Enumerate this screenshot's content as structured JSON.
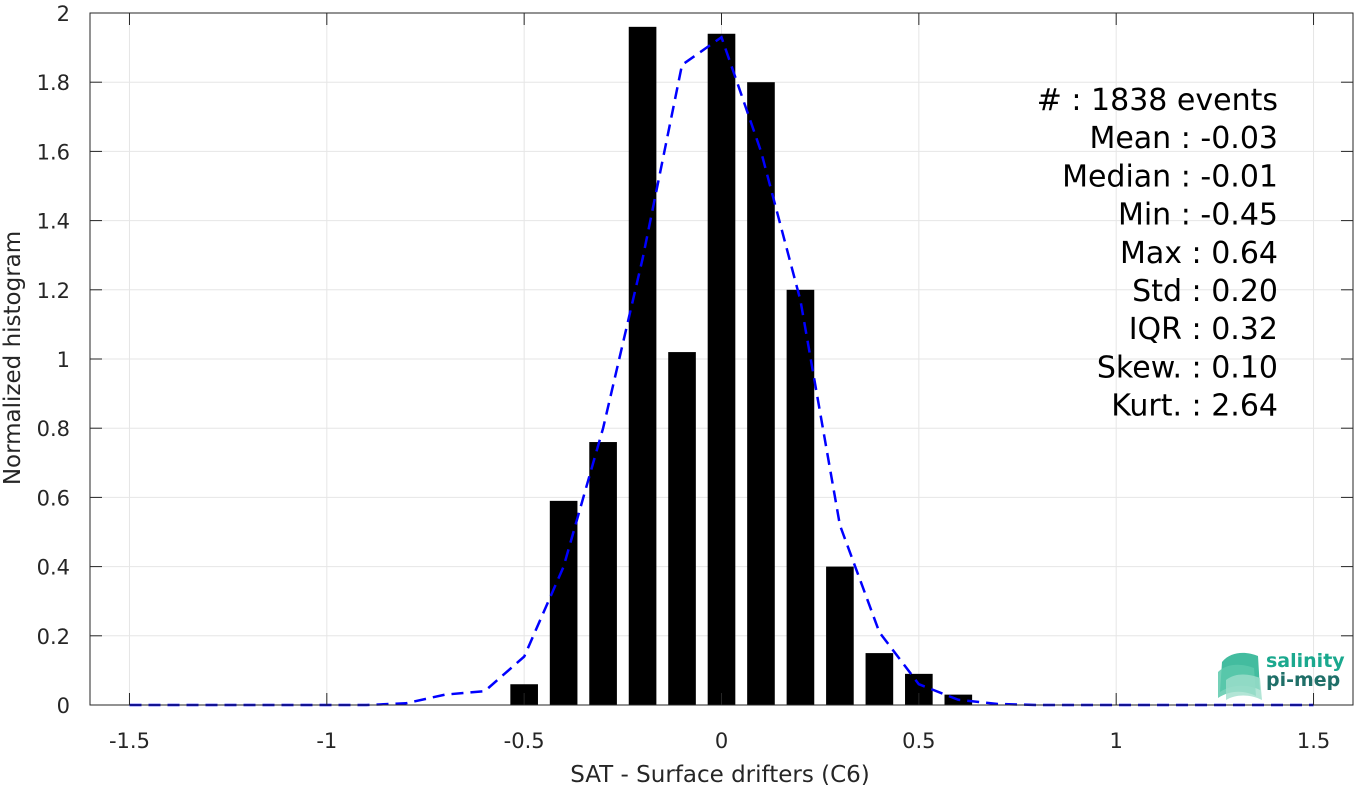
{
  "chart_data": {
    "type": "bar",
    "title": "",
    "xlabel": "SAT - Surface drifters (C6)",
    "ylabel": "Normalized histogram",
    "xlim": [
      -1.6,
      1.6
    ],
    "ylim": [
      0,
      2
    ],
    "grid": true,
    "x_ticks": [
      "-1.5",
      "-1",
      "-0.5",
      "0",
      "0.5",
      "1",
      "1.5"
    ],
    "x_tick_values": [
      -1.5,
      -1,
      -0.5,
      0,
      0.5,
      1,
      1.5
    ],
    "y_ticks": [
      "0",
      "0.2",
      "0.4",
      "0.6",
      "0.8",
      "1",
      "1.2",
      "1.4",
      "1.6",
      "1.8",
      "2"
    ],
    "y_tick_values": [
      0,
      0.2,
      0.4,
      0.6,
      0.8,
      1,
      1.2,
      1.4,
      1.6,
      1.8,
      2
    ],
    "bar_width": 0.07,
    "bars": {
      "x": [
        -0.5,
        -0.4,
        -0.3,
        -0.2,
        -0.1,
        0.0,
        0.1,
        0.2,
        0.3,
        0.4,
        0.5,
        0.6
      ],
      "values": [
        0.06,
        0.59,
        0.76,
        1.96,
        1.02,
        1.94,
        1.8,
        1.2,
        0.4,
        0.15,
        0.09,
        0.03
      ],
      "color": "#000000"
    },
    "fit_curve": {
      "style": "dashed",
      "color": "#0000ff",
      "x": [
        -1.5,
        -1.4,
        -1.3,
        -1.2,
        -1.1,
        -1.0,
        -0.9,
        -0.8,
        -0.7,
        -0.6,
        -0.5,
        -0.4,
        -0.3,
        -0.2,
        -0.1,
        0.0,
        0.1,
        0.2,
        0.3,
        0.4,
        0.5,
        0.6,
        0.7,
        0.8,
        0.9,
        1.0,
        1.1,
        1.2,
        1.3,
        1.4,
        1.5
      ],
      "y": [
        0,
        0,
        0,
        0,
        0,
        0,
        0,
        0.005,
        0.03,
        0.04,
        0.14,
        0.4,
        0.8,
        1.29,
        1.85,
        1.93,
        1.6,
        1.17,
        0.52,
        0.21,
        0.06,
        0.015,
        0.003,
        0,
        0,
        0,
        0,
        0,
        0,
        0,
        0
      ]
    },
    "stats_lines": [
      "#  : 1838 events",
      "Mean : -0.03",
      "Median : -0.01",
      "Min : -0.45",
      "Max : 0.64",
      "Std : 0.20",
      "IQR : 0.32",
      "Skew. : 0.10",
      "Kurt. : 2.64"
    ],
    "logo": {
      "line1": "salinity",
      "line2": "pi-mep",
      "color1": "#1aa88e",
      "color2": "#1f6f68"
    }
  }
}
